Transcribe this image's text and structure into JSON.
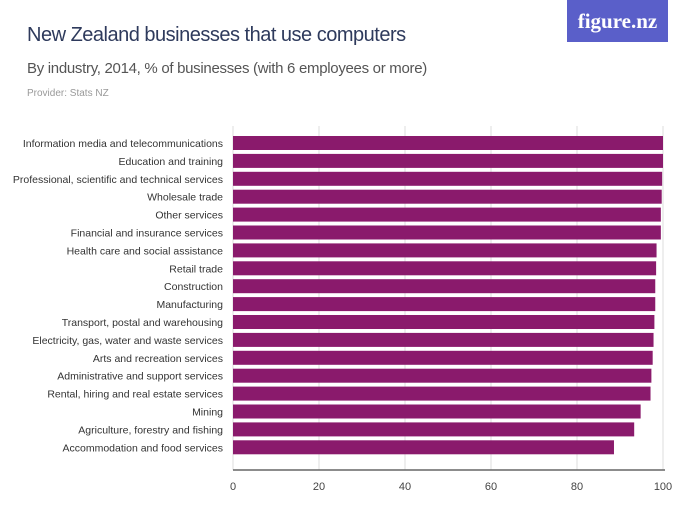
{
  "header": {
    "title": "New Zealand businesses that use computers",
    "subtitle": "By industry, 2014, % of businesses (with 6 employees or more)",
    "provider": "Provider: Stats NZ",
    "logo": "figure.nz"
  },
  "colors": {
    "bar": "#8a1a6c",
    "title": "#2e3a5c",
    "logo_bg": "#5a5fc9"
  },
  "chart_data": {
    "type": "bar",
    "orientation": "horizontal",
    "title": "New Zealand businesses that use computers",
    "subtitle": "By industry, 2014, % of businesses (with 6 employees or more)",
    "categories": [
      "Information media and telecommunications",
      "Education and training",
      "Professional, scientific and technical services",
      "Wholesale trade",
      "Other services",
      "Financial and insurance services",
      "Health care and social assistance",
      "Retail trade",
      "Construction",
      "Manufacturing",
      "Transport, postal and warehousing",
      "Electricity, gas, water and waste services",
      "Arts and recreation services",
      "Administrative and support services",
      "Rental, hiring and real estate services",
      "Mining",
      "Agriculture, forestry and fishing",
      "Accommodation and food services"
    ],
    "values": [
      100,
      100,
      99.8,
      99.7,
      99.5,
      99.5,
      98.5,
      98.4,
      98.2,
      98.2,
      98.0,
      97.8,
      97.6,
      97.3,
      97.1,
      94.8,
      93.3,
      88.6
    ],
    "xlim": [
      0,
      100
    ],
    "xticks": [
      "0",
      "20",
      "40",
      "60",
      "80",
      "100"
    ],
    "grid": true
  }
}
